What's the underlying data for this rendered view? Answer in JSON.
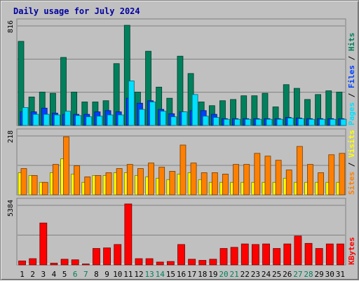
{
  "chart_data": {
    "type": "bar",
    "title": "Daily usage for July 2024",
    "colors": {
      "hits": "#00805c",
      "files": "#0040ff",
      "pages": "#00e0ff",
      "visits": "#ffff00",
      "sites": "#ff8000",
      "kbytes": "#ff0000",
      "weekday_label": "#000000",
      "weekend_label": "#00805c",
      "separator": "#ffffff"
    },
    "categories": [
      "1",
      "2",
      "3",
      "4",
      "5",
      "6",
      "7",
      "8",
      "9",
      "10",
      "11",
      "12",
      "13",
      "14",
      "15",
      "16",
      "17",
      "18",
      "19",
      "20",
      "21",
      "22",
      "23",
      "24",
      "25",
      "26",
      "27",
      "28",
      "29",
      "30",
      "31"
    ],
    "weekend_days": [
      "6",
      "7",
      "13",
      "14",
      "20",
      "21",
      "27",
      "28"
    ],
    "panels": [
      {
        "ymax_label": "816",
        "ylim": [
          0,
          816
        ],
        "side_labels": [
          {
            "text": "Pages",
            "color": "#00e0ff"
          },
          {
            "text": " / ",
            "color": "#000000"
          },
          {
            "text": "Files",
            "color": "#0040ff"
          },
          {
            "text": " / ",
            "color": "#000000"
          },
          {
            "text": "Hits",
            "color": "#00805c"
          }
        ],
        "series": [
          {
            "name": "Hits",
            "color": "#00805c",
            "values": [
              680,
              230,
              270,
              260,
              550,
              270,
              190,
              190,
              200,
              500,
              810,
              270,
              600,
              310,
              220,
              560,
              420,
              190,
              160,
              200,
              210,
              240,
              240,
              260,
              150,
              330,
              300,
              210,
              250,
              280,
              270
            ]
          },
          {
            "name": "Files",
            "color": "#0040ff",
            "values": [
              110,
              110,
              140,
              100,
              90,
              90,
              90,
              110,
              120,
              110,
              220,
              180,
              200,
              130,
              95,
              110,
              120,
              120,
              90,
              55,
              55,
              55,
              55,
              55,
              55,
              65,
              60,
              55,
              55,
              55,
              55
            ]
          },
          {
            "name": "Pages",
            "color": "#00e0ff",
            "values": [
              145,
              90,
              90,
              85,
              115,
              80,
              70,
              75,
              85,
              85,
              360,
              130,
              190,
              115,
              70,
              110,
              250,
              75,
              65,
              50,
              50,
              50,
              50,
              50,
              50,
              60,
              55,
              50,
              50,
              50,
              50
            ]
          }
        ]
      },
      {
        "ymax_label": "218",
        "ylim": [
          0,
          218
        ],
        "side_labels": [
          {
            "text": "Sites",
            "color": "#ff8000"
          },
          {
            "text": " / ",
            "color": "#000000"
          },
          {
            "text": "Visits",
            "color": "#ffff00"
          }
        ],
        "series": [
          {
            "name": "Visits",
            "color": "#ffff00",
            "values": [
              80,
              70,
              45,
              80,
              130,
              75,
              45,
              70,
              70,
              80,
              80,
              70,
              65,
              60,
              55,
              75,
              80,
              55,
              45,
              45,
              45,
              45,
              45,
              45,
              45,
              60,
              45,
              45,
              45,
              45,
              45
            ]
          },
          {
            "name": "Sites",
            "color": "#ff8000",
            "values": [
              95,
              70,
              45,
              110,
              210,
              105,
              65,
              70,
              80,
              95,
              110,
              95,
              115,
              100,
              85,
              180,
              115,
              80,
              80,
              75,
              110,
              110,
              150,
              140,
              125,
              90,
              175,
              110,
              80,
              145,
              150
            ]
          }
        ]
      },
      {
        "ymax_label": "5384",
        "ylim": [
          0,
          5384
        ],
        "side_labels": [
          {
            "text": "KBytes",
            "color": "#ff0000"
          }
        ],
        "series": [
          {
            "name": "KBytes",
            "color": "#ff0000",
            "values": [
              350,
              550,
              3700,
              150,
              500,
              450,
              80,
              1450,
              1500,
              1800,
              5384,
              550,
              550,
              250,
              300,
              1800,
              500,
              400,
              500,
              1450,
              1550,
              1850,
              1800,
              1850,
              1450,
              1850,
              2550,
              1900,
              1450,
              1850,
              1850
            ]
          }
        ]
      }
    ]
  }
}
